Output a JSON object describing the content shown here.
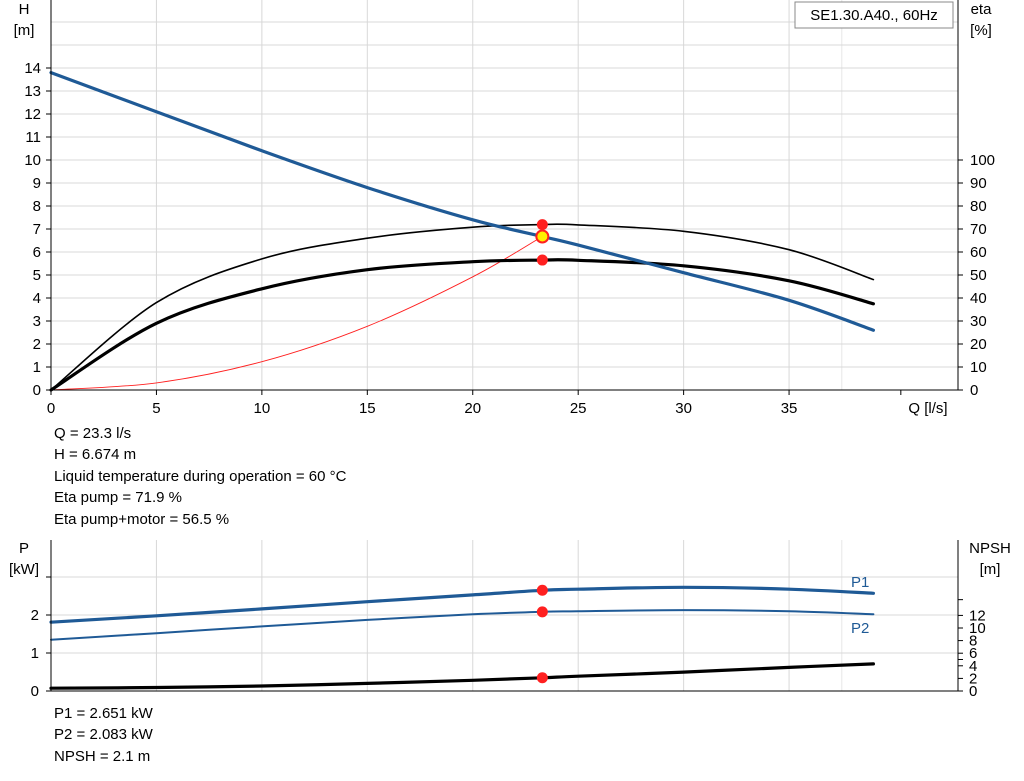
{
  "chart_data": [
    {
      "type": "line",
      "title": "SE1.30.A40., 60Hz",
      "xlabel": "Q [l/s]",
      "ylabel_left": [
        "H",
        "[m]"
      ],
      "ylabel_right": [
        "eta",
        "[%]"
      ],
      "xlim": [
        0,
        40
      ],
      "ylim_left": [
        0,
        15
      ],
      "ylim_right": [
        -10,
        100
      ],
      "x_ticks": [
        0,
        5,
        10,
        15,
        20,
        25,
        30,
        35
      ],
      "y_ticks_left": [
        0,
        1,
        2,
        3,
        4,
        5,
        6,
        7,
        8,
        9,
        10,
        11,
        12,
        13,
        14
      ],
      "y_ticks_right": [
        0,
        10,
        20,
        30,
        40,
        50,
        60,
        70,
        80,
        90,
        100
      ],
      "grid": true,
      "series": [
        {
          "name": "H",
          "axis": "left",
          "color": "#1f5a96",
          "x": [
            0,
            5,
            10,
            15,
            20,
            23.3,
            25,
            30,
            35,
            39
          ],
          "values": [
            13.8,
            12.1,
            10.4,
            8.8,
            7.4,
            6.674,
            6.3,
            5.1,
            3.9,
            2.6
          ]
        },
        {
          "name": "Eta pump",
          "axis": "right",
          "color": "#000000",
          "x": [
            0,
            5,
            10,
            15,
            20,
            23.3,
            25,
            30,
            35,
            39
          ],
          "values": [
            0,
            38,
            57,
            66,
            70.8,
            71.9,
            71.8,
            69,
            61,
            48
          ]
        },
        {
          "name": "Eta pump+motor",
          "axis": "right",
          "color": "#000000",
          "x": [
            0,
            5,
            10,
            15,
            20,
            23.3,
            25,
            30,
            35,
            39
          ],
          "values": [
            0,
            29,
            44,
            52.3,
            55.8,
            56.5,
            56.4,
            54,
            47.5,
            37.5
          ]
        },
        {
          "name": "System curve",
          "axis": "left",
          "color": "#ff2020",
          "x": [
            0,
            5,
            10,
            15,
            20,
            23.3
          ],
          "values": [
            0,
            0.31,
            1.23,
            2.77,
            4.92,
            6.674
          ]
        }
      ],
      "operating_point": {
        "Q": 23.3,
        "H": 6.674,
        "eta_pump": 71.9,
        "eta_pump_motor": 56.5
      },
      "info": [
        "Q = 23.3 l/s",
        "H = 6.674 m",
        "Liquid temperature during operation = 60 °C",
        "Eta pump = 71.9 %",
        "Eta pump+motor = 56.5 %"
      ]
    },
    {
      "type": "line",
      "ylabel_left": [
        "P",
        "[kW]"
      ],
      "ylabel_right": [
        "NPSH",
        "[m]"
      ],
      "xlim": [
        0,
        40
      ],
      "ylim_left": [
        0,
        3
      ],
      "ylim_right": [
        0,
        16
      ],
      "y_ticks_left": [
        0,
        1,
        2
      ],
      "y_ticks_right": [
        0,
        2,
        4,
        6,
        8,
        10,
        12
      ],
      "y_ticks_right_minor": [
        5
      ],
      "grid": true,
      "series": [
        {
          "name": "P1",
          "axis": "left",
          "color": "#1f5a96",
          "x": [
            0,
            5,
            10,
            15,
            20,
            23.3,
            25,
            30,
            35,
            39
          ],
          "values": [
            1.81,
            1.98,
            2.16,
            2.35,
            2.53,
            2.651,
            2.68,
            2.73,
            2.68,
            2.57
          ]
        },
        {
          "name": "P2",
          "axis": "left",
          "color": "#1f5a96",
          "x": [
            0,
            5,
            10,
            15,
            20,
            23.3,
            25,
            30,
            35,
            39
          ],
          "values": [
            1.35,
            1.52,
            1.7,
            1.87,
            2.02,
            2.083,
            2.1,
            2.13,
            2.1,
            2.02
          ]
        },
        {
          "name": "NPSH",
          "axis": "right",
          "color": "#000000",
          "x": [
            0,
            5,
            10,
            15,
            20,
            23.3,
            25,
            30,
            35,
            39
          ],
          "values": [
            0.45,
            0.55,
            0.8,
            1.2,
            1.7,
            2.1,
            2.35,
            3.0,
            3.75,
            4.3
          ]
        }
      ],
      "operating_point": {
        "P1": 2.651,
        "P2": 2.083,
        "NPSH": 2.1
      },
      "info": [
        "P1 = 2.651 kW",
        "P2 = 2.083 kW",
        "NPSH = 2.1 m"
      ]
    }
  ],
  "colors": {
    "curve_blue": "#1f5a96",
    "operating_point": "#ff2020",
    "operating_point_highlight": "#ffee00",
    "grid": "#d8d8d8"
  }
}
